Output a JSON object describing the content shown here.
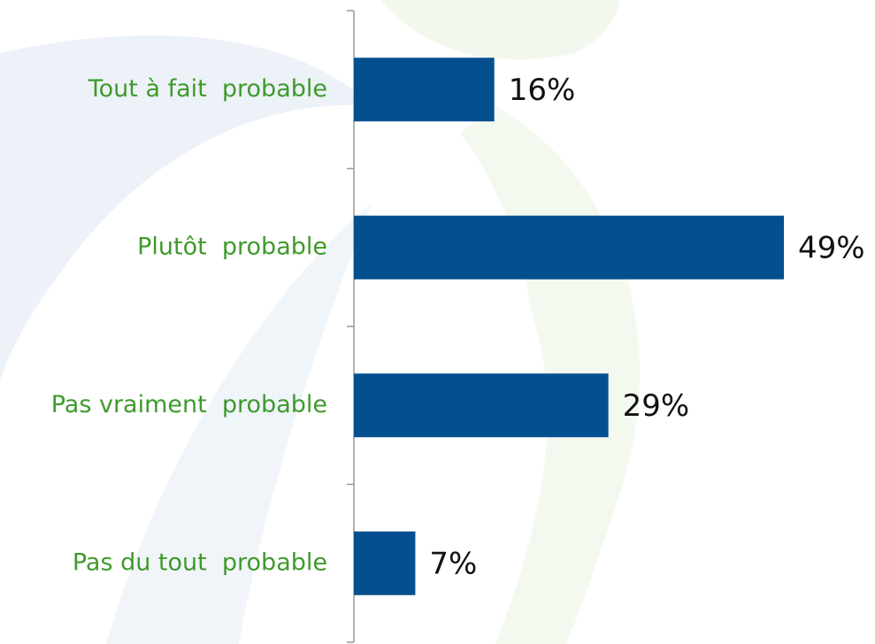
{
  "chart_data": {
    "type": "bar",
    "orientation": "horizontal",
    "categories": [
      "Tout à fait  probable",
      "Plutôt  probable",
      "Pas vraiment  probable",
      "Pas du tout  probable"
    ],
    "values": [
      16,
      49,
      29,
      7
    ],
    "value_labels": [
      "16%",
      "49%",
      "29%",
      "7%"
    ],
    "color": "#04508f"
  }
}
